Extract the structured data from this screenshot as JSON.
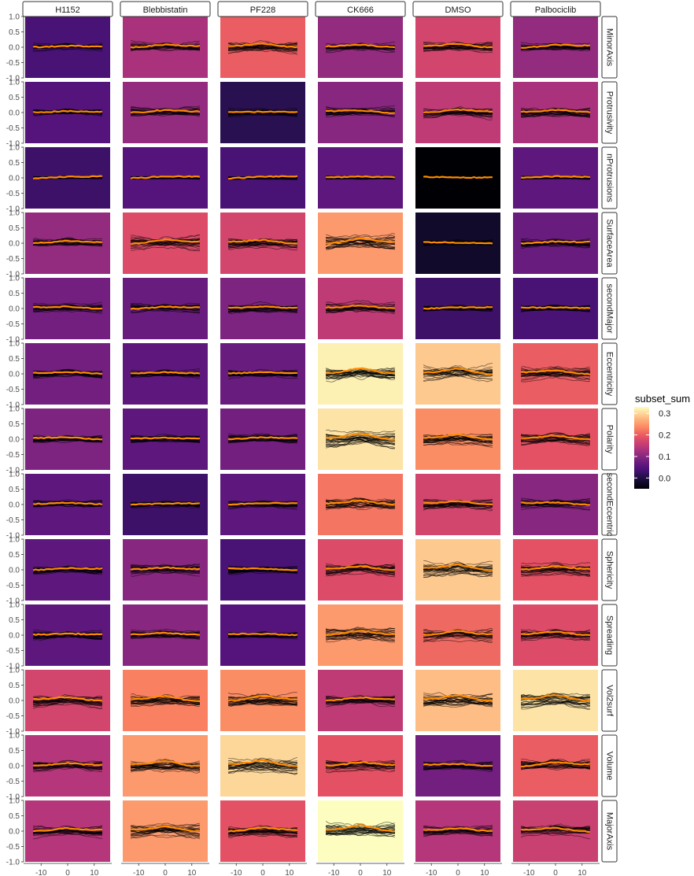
{
  "chart_data": {
    "type": "line",
    "layout": "facet-grid",
    "columns": [
      "H1152",
      "Blebbistatin",
      "PF228",
      "CK666",
      "DMSO",
      "Palbociclib"
    ],
    "rows": [
      "MinorAxis",
      "Protrusivity",
      "nProtrusions",
      "SurfaceArea",
      "secondMajor",
      "Eccentricity",
      "Polarity",
      "secondEccentric",
      "Sphericity",
      "Spreading",
      "Vol2surf",
      "Volume",
      "MajorAxis"
    ],
    "x_ticks": [
      -10,
      0,
      10
    ],
    "x_tick_labels": [
      "-10",
      "0",
      "10"
    ],
    "xlim": [
      -16,
      16
    ],
    "y_ticks": [
      -1.0,
      -0.5,
      0.0,
      0.5,
      1.0
    ],
    "y_tick_labels": [
      "-1.0",
      "-0.5",
      "0.0",
      "0.5",
      "1.0"
    ],
    "ylim": [
      -1.0,
      1.0
    ],
    "fill_legend": {
      "title": "subset_sum",
      "ticks": [
        0.0,
        0.1,
        0.2,
        0.3
      ],
      "tick_labels": [
        "0.0",
        "0.1",
        "0.2",
        "0.3"
      ],
      "range": [
        -0.05,
        0.33
      ],
      "palette": "magma"
    },
    "subset_sum": [
      [
        0.04,
        0.13,
        0.2,
        0.11,
        0.17,
        0.11
      ],
      [
        0.05,
        0.11,
        0.01,
        0.1,
        0.15,
        0.13
      ],
      [
        0.03,
        0.05,
        0.04,
        0.06,
        -0.05,
        0.06
      ],
      [
        0.11,
        0.18,
        0.17,
        0.25,
        -0.02,
        0.07
      ],
      [
        0.08,
        0.07,
        0.09,
        0.15,
        0.03,
        0.04
      ],
      [
        0.08,
        0.06,
        0.07,
        0.32,
        0.29,
        0.2
      ],
      [
        0.09,
        0.06,
        0.08,
        0.31,
        0.24,
        0.19
      ],
      [
        0.06,
        0.03,
        0.06,
        0.22,
        0.17,
        0.1
      ],
      [
        0.06,
        0.1,
        0.04,
        0.18,
        0.29,
        0.19
      ],
      [
        0.06,
        0.1,
        0.05,
        0.25,
        0.21,
        0.18
      ],
      [
        0.17,
        0.23,
        0.24,
        0.15,
        0.28,
        0.31
      ],
      [
        0.14,
        0.25,
        0.3,
        0.19,
        0.08,
        0.2
      ],
      [
        0.14,
        0.25,
        0.19,
        0.34,
        0.14,
        0.16
      ]
    ],
    "mean_line_color": "#ff8c00",
    "trace_color": "#000000",
    "grid": false
  }
}
